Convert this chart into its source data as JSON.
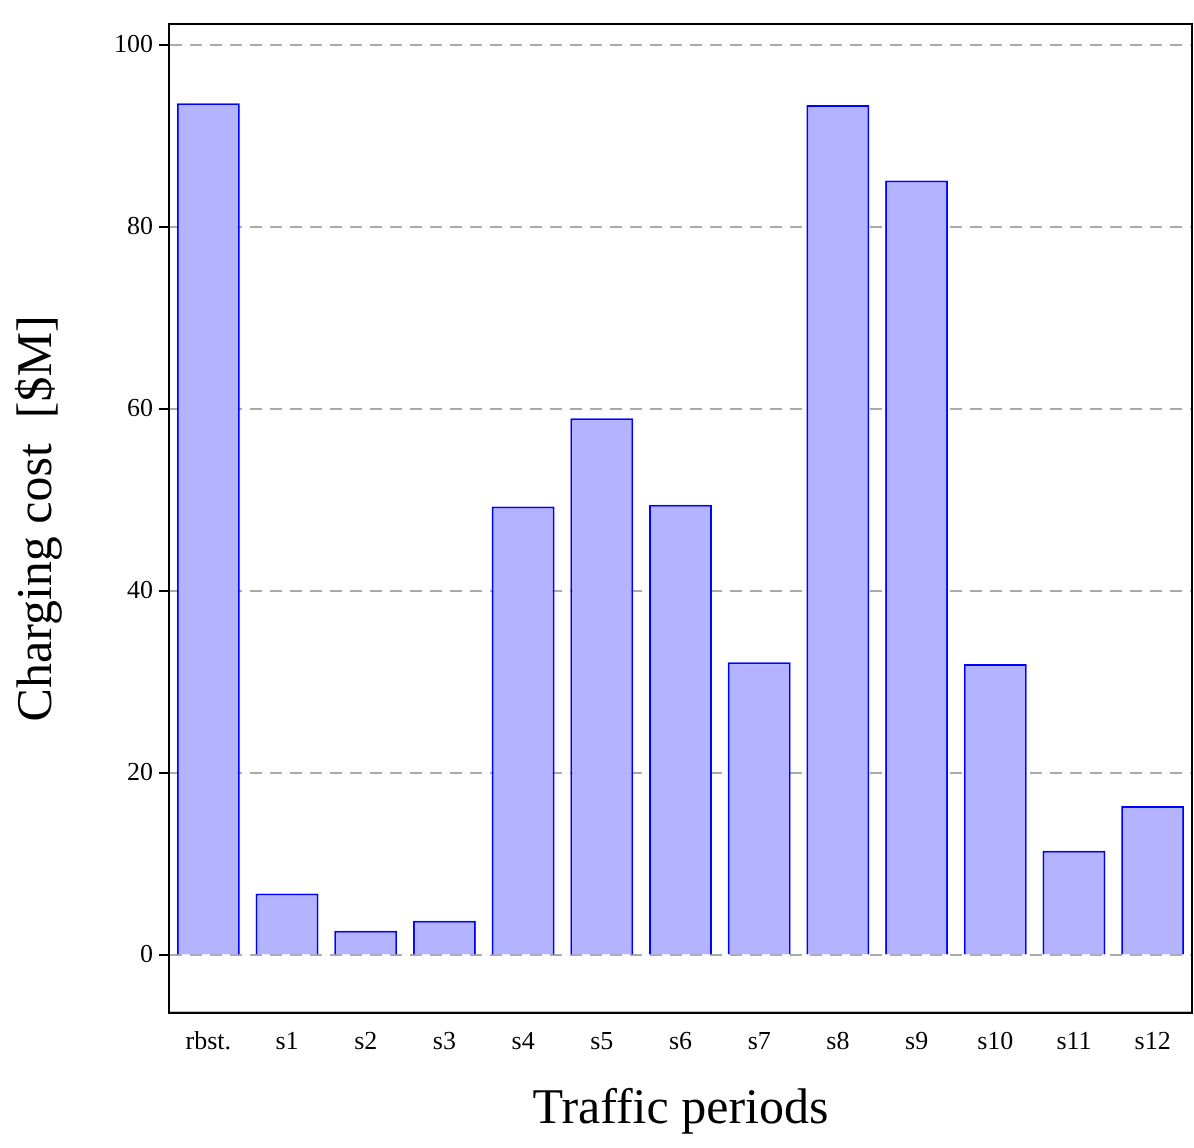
{
  "chart_data": {
    "type": "bar",
    "xlabel": "Traffic periods",
    "ylabel": "Charging cost  [$M]",
    "categories": [
      "rbst.",
      "s1",
      "s2",
      "s3",
      "s4",
      "s5",
      "s6",
      "s7",
      "s8",
      "s9",
      "s10",
      "s11",
      "s12"
    ],
    "series": [
      {
        "color": "#b3b3ff",
        "values": [
          93.6,
          6.8,
          2.7,
          3.8,
          49.3,
          59.0,
          49.5,
          32.2,
          93.4,
          85.1,
          32.0,
          11.5,
          16.4
        ]
      }
    ],
    "ylim": [
      -6.3,
      102.3
    ],
    "yticks": [
      0,
      20,
      40,
      60,
      80,
      100
    ],
    "grid": "y",
    "legend": false
  }
}
